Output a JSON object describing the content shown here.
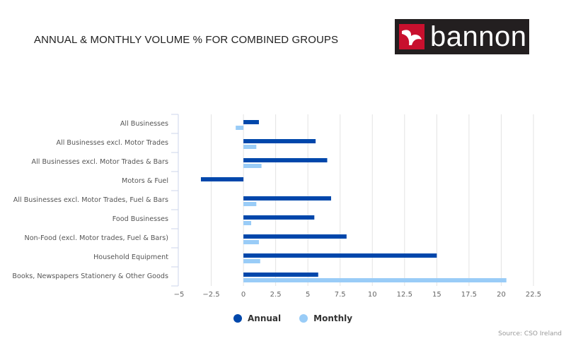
{
  "header": {
    "title": "ANNUAL & MONTHLY VOLUME % FOR COMBINED GROUPS",
    "logo_text": "bannon",
    "logo_bg": "#231f20",
    "logo_accent": "#c8102e"
  },
  "legend": {
    "items": [
      {
        "label": "Annual",
        "color": "#0047ab"
      },
      {
        "label": "Monthly",
        "color": "#99ccf7"
      }
    ]
  },
  "footer": {
    "source": "Source: CSO Ireland"
  },
  "chart_data": {
    "type": "bar",
    "orientation": "horizontal",
    "title": "ANNUAL & MONTHLY VOLUME % FOR COMBINED GROUPS",
    "xlabel": "",
    "ylabel": "",
    "xlim": [
      -5,
      22.5
    ],
    "x_ticks": [
      -5,
      -2.5,
      0,
      2.5,
      5,
      7.5,
      10,
      12.5,
      15,
      17.5,
      20,
      22.5
    ],
    "x_tick_labels": [
      "−5",
      "−2.5",
      "0",
      "2.5",
      "5",
      "7.5",
      "10",
      "12.5",
      "15",
      "17.5",
      "20",
      "22.5"
    ],
    "grid": true,
    "legend_position": "bottom",
    "categories": [
      "All Businesses",
      "All Businesses excl. Motor Trades",
      "All Businesses excl. Motor Trades & Bars",
      "Motors & Fuel",
      "All Businesses excl. Motor Trades, Fuel & Bars",
      "Food Businesses",
      "Non-Food (excl. Motor trades, Fuel & Bars)",
      "Household Equipment",
      "Books, Newspapers Stationery & Other Goods"
    ],
    "series": [
      {
        "name": "Annual",
        "color": "#0047ab",
        "values": [
          1.2,
          5.6,
          6.5,
          -3.3,
          6.8,
          5.5,
          8.0,
          15.0,
          5.8
        ]
      },
      {
        "name": "Monthly",
        "color": "#99ccf7",
        "values": [
          -0.6,
          1.0,
          1.4,
          null,
          1.0,
          0.6,
          1.2,
          1.3,
          20.4
        ]
      }
    ],
    "source": "Source: CSO Ireland"
  }
}
